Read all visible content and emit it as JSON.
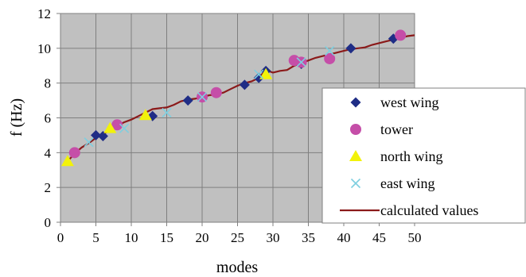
{
  "chart_data": {
    "type": "scatter",
    "xlabel": "modes",
    "ylabel": "f (Hz)",
    "xlim": [
      0,
      50
    ],
    "ylim": [
      0,
      12
    ],
    "xticks": [
      0,
      5,
      10,
      15,
      20,
      25,
      30,
      35,
      40,
      45,
      50
    ],
    "yticks": [
      0,
      2,
      4,
      6,
      8,
      10,
      12
    ],
    "grid": true,
    "plot_background": "#c0c0c0",
    "legend_position": "bottom-right",
    "series": [
      {
        "name": "west wing",
        "marker": "diamond",
        "color": "#1f2d86",
        "points": [
          [
            5,
            5.0
          ],
          [
            6,
            4.95
          ],
          [
            13,
            6.1
          ],
          [
            18,
            7.0
          ],
          [
            26,
            7.9
          ],
          [
            28,
            8.3
          ],
          [
            29,
            8.7
          ],
          [
            34,
            9.1
          ],
          [
            41,
            10.0
          ],
          [
            47,
            10.55
          ]
        ]
      },
      {
        "name": "tower",
        "marker": "circle",
        "color": "#c54ea8",
        "points": [
          [
            2,
            4.0
          ],
          [
            8,
            5.6
          ],
          [
            20,
            7.2
          ],
          [
            22,
            7.45
          ],
          [
            33,
            9.3
          ],
          [
            34,
            9.2
          ],
          [
            38,
            9.4
          ],
          [
            48,
            10.75
          ]
        ]
      },
      {
        "name": "north wing",
        "marker": "triangle",
        "color": "#f2f20a",
        "points": [
          [
            1,
            3.5
          ],
          [
            7,
            5.4
          ],
          [
            12,
            6.15
          ],
          [
            29,
            8.5
          ]
        ]
      },
      {
        "name": "east wing",
        "marker": "x",
        "color": "#7ecfe0",
        "points": [
          [
            4,
            4.6
          ],
          [
            9,
            5.4
          ],
          [
            15,
            6.3
          ],
          [
            20,
            7.2
          ],
          [
            28,
            8.5
          ],
          [
            34,
            9.2
          ],
          [
            38,
            9.85
          ]
        ]
      },
      {
        "name": "calculated values",
        "marker": "line",
        "color": "#8b1a1a",
        "points": [
          [
            1,
            3.5
          ],
          [
            2,
            3.95
          ],
          [
            3,
            4.3
          ],
          [
            4,
            4.55
          ],
          [
            5,
            4.85
          ],
          [
            6,
            5.05
          ],
          [
            7,
            5.3
          ],
          [
            8,
            5.55
          ],
          [
            9,
            5.75
          ],
          [
            10,
            5.9
          ],
          [
            11,
            6.1
          ],
          [
            12,
            6.3
          ],
          [
            13,
            6.5
          ],
          [
            14,
            6.55
          ],
          [
            15,
            6.6
          ],
          [
            16,
            6.75
          ],
          [
            17,
            6.95
          ],
          [
            18,
            7.05
          ],
          [
            19,
            7.1
          ],
          [
            20,
            7.2
          ],
          [
            21,
            7.3
          ],
          [
            22,
            7.35
          ],
          [
            23,
            7.45
          ],
          [
            24,
            7.65
          ],
          [
            25,
            7.85
          ],
          [
            26,
            8.0
          ],
          [
            27,
            8.1
          ],
          [
            28,
            8.3
          ],
          [
            29,
            8.75
          ],
          [
            30,
            8.6
          ],
          [
            31,
            8.7
          ],
          [
            32,
            8.75
          ],
          [
            33,
            9.0
          ],
          [
            34,
            9.15
          ],
          [
            35,
            9.3
          ],
          [
            36,
            9.45
          ],
          [
            37,
            9.55
          ],
          [
            38,
            9.65
          ],
          [
            39,
            9.75
          ],
          [
            40,
            9.85
          ],
          [
            41,
            9.95
          ],
          [
            42,
            10.0
          ],
          [
            43,
            10.05
          ],
          [
            44,
            10.2
          ],
          [
            45,
            10.3
          ],
          [
            46,
            10.4
          ],
          [
            47,
            10.5
          ],
          [
            48,
            10.6
          ],
          [
            49,
            10.7
          ],
          [
            50,
            10.75
          ]
        ]
      }
    ]
  }
}
